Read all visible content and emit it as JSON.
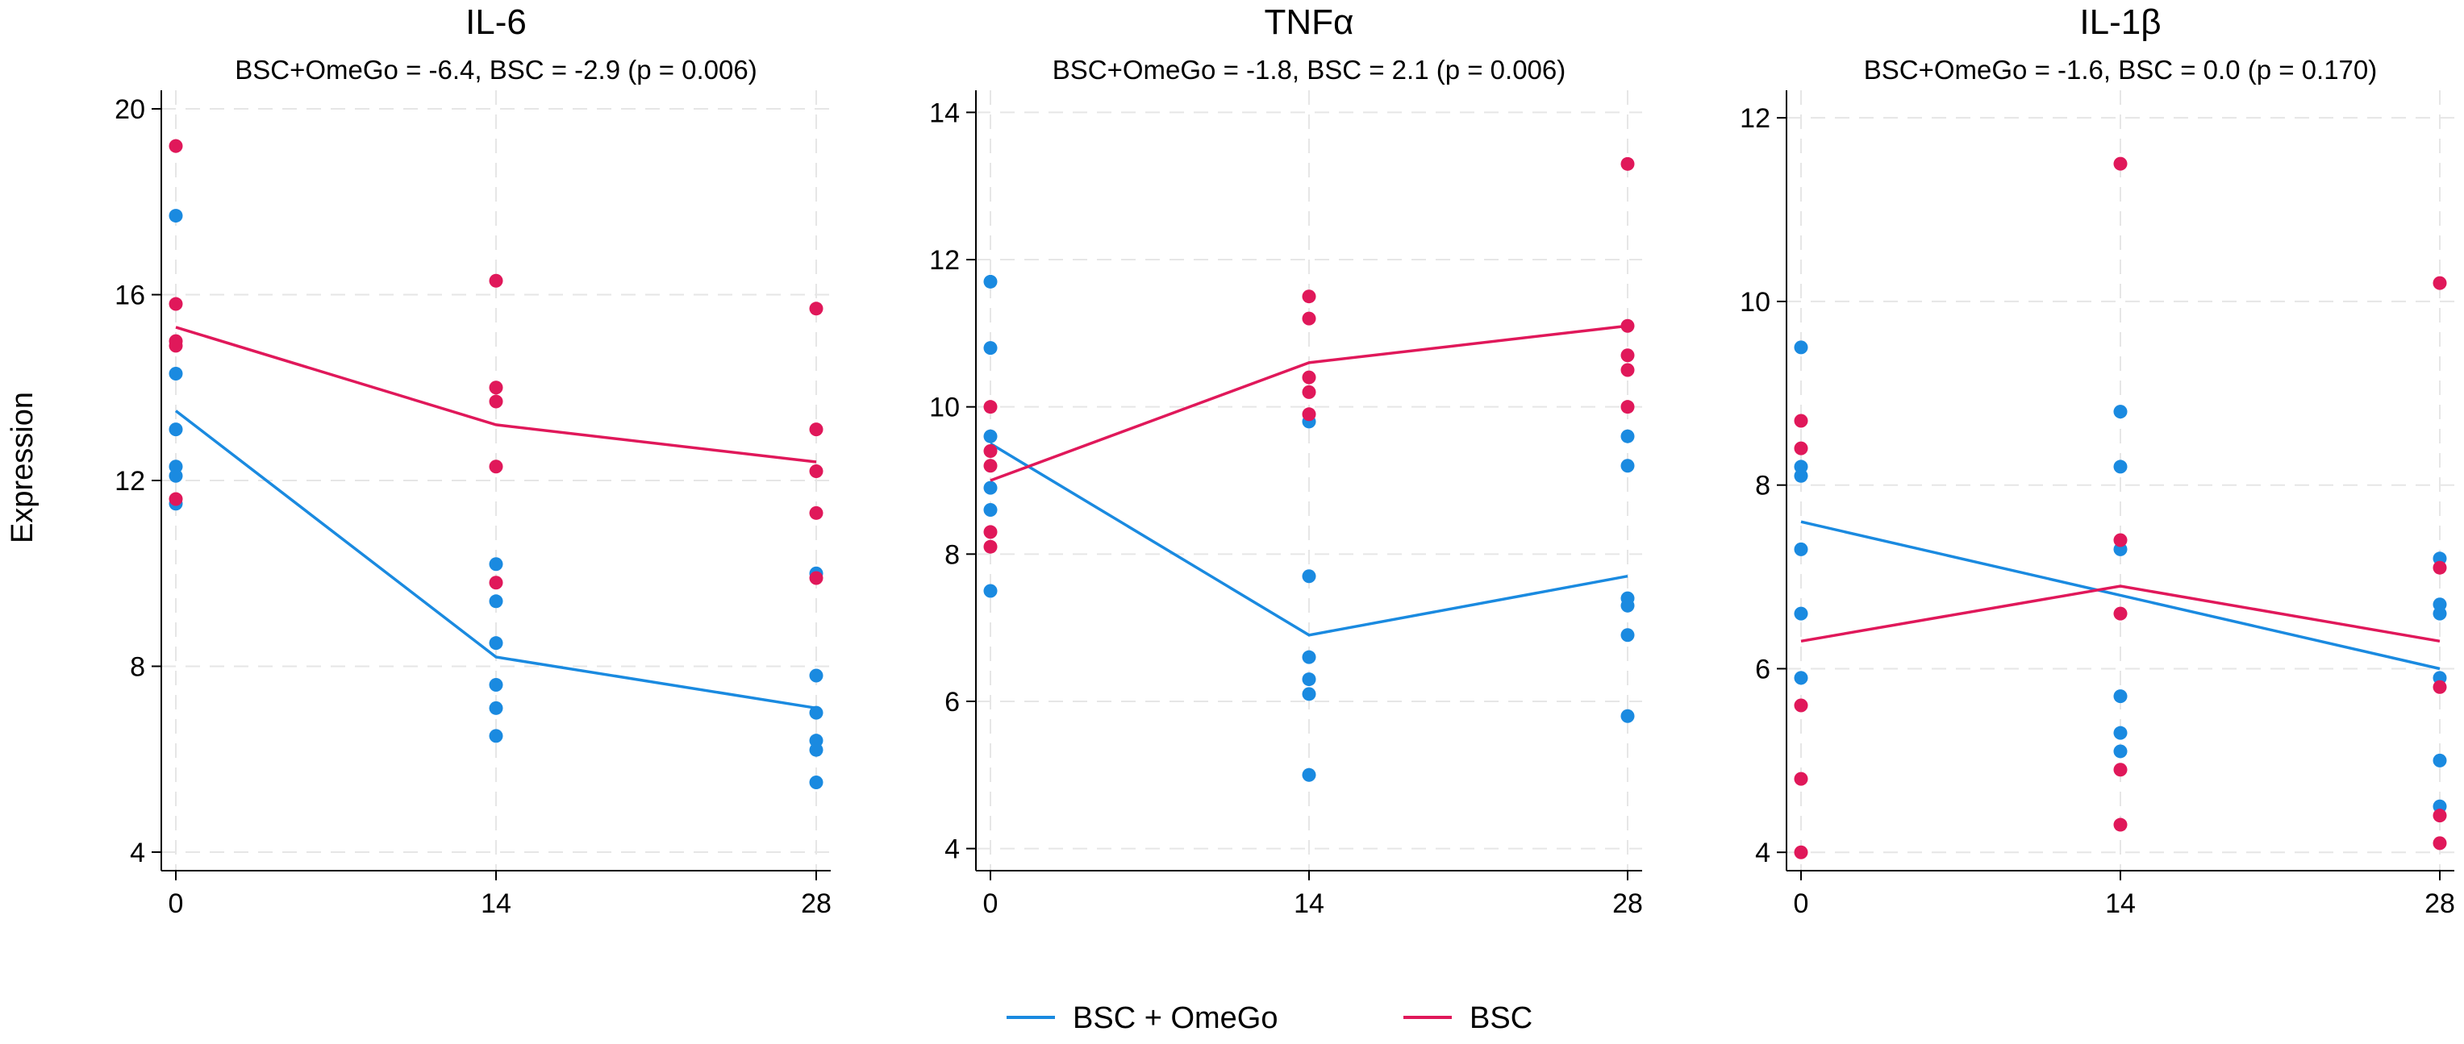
{
  "figure": {
    "ylabel": "Expression"
  },
  "colors": {
    "combo": "#1a8ae0",
    "bsc": "#e0185a",
    "grid": "#e6e6e6",
    "axis": "#000000"
  },
  "legend": {
    "position": "bottom-center",
    "items": [
      {
        "label": "BSC + OmeGo",
        "color": "#1a8ae0"
      },
      {
        "label": "BSC",
        "color": "#e0185a"
      }
    ]
  },
  "chart_data": [
    {
      "type": "scatter",
      "title": "IL-6",
      "subtitle": "BSC+OmeGo = -6.4,  BSC = -2.9 (p = 0.006)",
      "xlabel": "",
      "ylabel": "Expression",
      "xlim": [
        0,
        28
      ],
      "ylim": [
        3.6,
        20.4
      ],
      "xticks": [
        0,
        14,
        28
      ],
      "yticks": [
        4,
        8,
        12,
        16,
        20
      ],
      "series": [
        {
          "name": "BSC + OmeGo",
          "points": [
            [
              0,
              17.7
            ],
            [
              0,
              14.3
            ],
            [
              0,
              13.1
            ],
            [
              0,
              12.3
            ],
            [
              0,
              12.1
            ],
            [
              0,
              11.5
            ],
            [
              14,
              10.2
            ],
            [
              14,
              9.4
            ],
            [
              14,
              8.5
            ],
            [
              14,
              7.6
            ],
            [
              14,
              7.1
            ],
            [
              14,
              6.5
            ],
            [
              28,
              10.0
            ],
            [
              28,
              7.8
            ],
            [
              28,
              7.0
            ],
            [
              28,
              6.4
            ],
            [
              28,
              6.2
            ],
            [
              28,
              5.5
            ]
          ],
          "line": [
            [
              0,
              13.5
            ],
            [
              14,
              8.2
            ],
            [
              28,
              7.1
            ]
          ]
        },
        {
          "name": "BSC",
          "points": [
            [
              0,
              19.2
            ],
            [
              0,
              15.8
            ],
            [
              0,
              15.0
            ],
            [
              0,
              14.9
            ],
            [
              0,
              11.6
            ],
            [
              14,
              16.3
            ],
            [
              14,
              14.0
            ],
            [
              14,
              13.7
            ],
            [
              14,
              12.3
            ],
            [
              14,
              9.8
            ],
            [
              28,
              15.7
            ],
            [
              28,
              13.1
            ],
            [
              28,
              12.2
            ],
            [
              28,
              11.3
            ],
            [
              28,
              9.9
            ]
          ],
          "line": [
            [
              0,
              15.3
            ],
            [
              14,
              13.2
            ],
            [
              28,
              12.4
            ]
          ]
        }
      ]
    },
    {
      "type": "scatter",
      "title": "TNFα",
      "subtitle": "BSC+OmeGo = -1.8,  BSC = 2.1 (p = 0.006)",
      "xlabel": "",
      "ylabel": "",
      "xlim": [
        0,
        28
      ],
      "ylim": [
        3.7,
        14.3
      ],
      "xticks": [
        0,
        14,
        28
      ],
      "yticks": [
        4,
        6,
        8,
        10,
        12,
        14
      ],
      "series": [
        {
          "name": "BSC + OmeGo",
          "points": [
            [
              0,
              11.7
            ],
            [
              0,
              10.8
            ],
            [
              0,
              9.6
            ],
            [
              0,
              8.9
            ],
            [
              0,
              8.6
            ],
            [
              0,
              7.5
            ],
            [
              14,
              9.8
            ],
            [
              14,
              7.7
            ],
            [
              14,
              6.6
            ],
            [
              14,
              6.3
            ],
            [
              14,
              6.1
            ],
            [
              14,
              5.0
            ],
            [
              28,
              9.6
            ],
            [
              28,
              9.2
            ],
            [
              28,
              7.4
            ],
            [
              28,
              7.3
            ],
            [
              28,
              6.9
            ],
            [
              28,
              5.8
            ]
          ],
          "line": [
            [
              0,
              9.5
            ],
            [
              14,
              6.9
            ],
            [
              28,
              7.7
            ]
          ]
        },
        {
          "name": "BSC",
          "points": [
            [
              0,
              10.0
            ],
            [
              0,
              9.4
            ],
            [
              0,
              9.2
            ],
            [
              0,
              8.3
            ],
            [
              0,
              8.1
            ],
            [
              14,
              11.5
            ],
            [
              14,
              11.2
            ],
            [
              14,
              10.4
            ],
            [
              14,
              10.2
            ],
            [
              14,
              9.9
            ],
            [
              28,
              13.3
            ],
            [
              28,
              11.1
            ],
            [
              28,
              10.7
            ],
            [
              28,
              10.5
            ],
            [
              28,
              10.0
            ]
          ],
          "line": [
            [
              0,
              9.0
            ],
            [
              14,
              10.6
            ],
            [
              28,
              11.1
            ]
          ]
        }
      ]
    },
    {
      "type": "scatter",
      "title": "IL-1β",
      "subtitle": "BSC+OmeGo = -1.6,  BSC = 0.0 (p = 0.170)",
      "xlabel": "",
      "ylabel": "",
      "xlim": [
        0,
        28
      ],
      "ylim": [
        3.8,
        12.3
      ],
      "xticks": [
        0,
        14,
        28
      ],
      "yticks": [
        4,
        6,
        8,
        10,
        12
      ],
      "series": [
        {
          "name": "BSC + OmeGo",
          "points": [
            [
              0,
              9.5
            ],
            [
              0,
              8.2
            ],
            [
              0,
              8.1
            ],
            [
              0,
              7.3
            ],
            [
              0,
              6.6
            ],
            [
              0,
              5.9
            ],
            [
              14,
              8.8
            ],
            [
              14,
              8.2
            ],
            [
              14,
              7.3
            ],
            [
              14,
              5.7
            ],
            [
              14,
              5.3
            ],
            [
              14,
              5.1
            ],
            [
              28,
              7.2
            ],
            [
              28,
              6.7
            ],
            [
              28,
              6.6
            ],
            [
              28,
              5.9
            ],
            [
              28,
              5.0
            ],
            [
              28,
              4.5
            ]
          ],
          "line": [
            [
              0,
              7.6
            ],
            [
              14,
              6.8
            ],
            [
              28,
              6.0
            ]
          ]
        },
        {
          "name": "BSC",
          "points": [
            [
              0,
              8.7
            ],
            [
              0,
              8.4
            ],
            [
              0,
              5.6
            ],
            [
              0,
              4.8
            ],
            [
              0,
              4.0
            ],
            [
              14,
              11.5
            ],
            [
              14,
              7.4
            ],
            [
              14,
              6.6
            ],
            [
              14,
              4.9
            ],
            [
              14,
              4.3
            ],
            [
              28,
              10.2
            ],
            [
              28,
              7.1
            ],
            [
              28,
              5.8
            ],
            [
              28,
              4.4
            ],
            [
              28,
              4.1
            ]
          ],
          "line": [
            [
              0,
              6.3
            ],
            [
              14,
              6.9
            ],
            [
              28,
              6.3
            ]
          ]
        }
      ]
    }
  ]
}
